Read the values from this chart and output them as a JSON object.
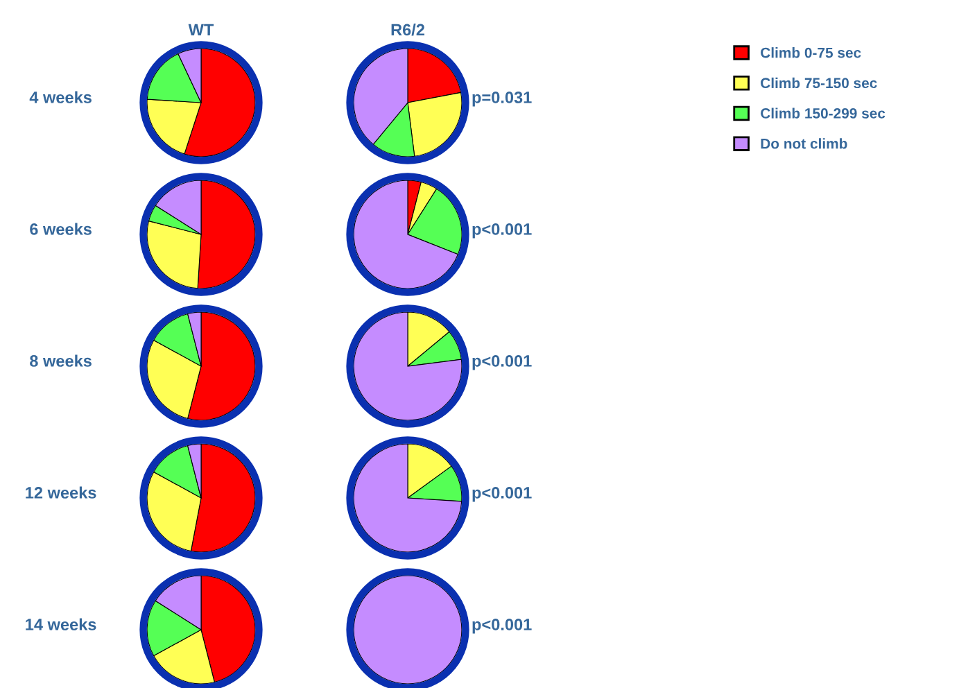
{
  "chart_data": [
    {
      "type": "pie",
      "title": "WT",
      "ylabel": "4 weeks",
      "categories": [
        "Climb 0-75 sec",
        "Climb 75-150 sec",
        "Climb 150-299 sec",
        "Do not climb"
      ],
      "values": [
        55,
        21,
        17,
        7
      ],
      "colors": [
        "#ff0000",
        "#ffff55",
        "#55ff55",
        "#c58cff"
      ],
      "legend": "top right"
    },
    {
      "type": "pie",
      "title": "R6/2",
      "values": [
        22,
        26,
        13,
        39
      ],
      "colors": [
        "#ff0000",
        "#ffff55",
        "#55ff55",
        "#c58cff"
      ],
      "annotations": [
        "p=0.031"
      ]
    },
    {
      "type": "pie",
      "ylabel": "6 weeks",
      "values": [
        51,
        28,
        5,
        16
      ],
      "colors": [
        "#ff0000",
        "#ffff55",
        "#55ff55",
        "#c58cff"
      ]
    },
    {
      "type": "pie",
      "values": [
        4,
        5,
        22,
        69
      ],
      "colors": [
        "#ff0000",
        "#ffff55",
        "#55ff55",
        "#c58cff"
      ],
      "annotations": [
        "p<0.001"
      ]
    },
    {
      "type": "pie",
      "ylabel": "8 weeks",
      "values": [
        54,
        29,
        13,
        4
      ],
      "colors": [
        "#ff0000",
        "#ffff55",
        "#55ff55",
        "#c58cff"
      ]
    },
    {
      "type": "pie",
      "values": [
        0,
        14,
        9,
        77
      ],
      "colors": [
        "#ff0000",
        "#ffff55",
        "#55ff55",
        "#c58cff"
      ],
      "annotations": [
        "p<0.001"
      ]
    },
    {
      "type": "pie",
      "ylabel": "12 weeks",
      "values": [
        53,
        30,
        13,
        4
      ],
      "colors": [
        "#ff0000",
        "#ffff55",
        "#55ff55",
        "#c58cff"
      ]
    },
    {
      "type": "pie",
      "values": [
        0,
        15,
        11,
        74
      ],
      "colors": [
        "#ff0000",
        "#ffff55",
        "#55ff55",
        "#c58cff"
      ],
      "annotations": [
        "p<0.001"
      ]
    },
    {
      "type": "pie",
      "ylabel": "14 weeks",
      "values": [
        46,
        21,
        17,
        16
      ],
      "colors": [
        "#ff0000",
        "#ffff55",
        "#55ff55",
        "#c58cff"
      ]
    },
    {
      "type": "pie",
      "values": [
        0,
        0,
        0,
        100
      ],
      "colors": [
        "#ff0000",
        "#ffff55",
        "#55ff55",
        "#c58cff"
      ],
      "annotations": [
        "p<0.001"
      ]
    }
  ]
}
